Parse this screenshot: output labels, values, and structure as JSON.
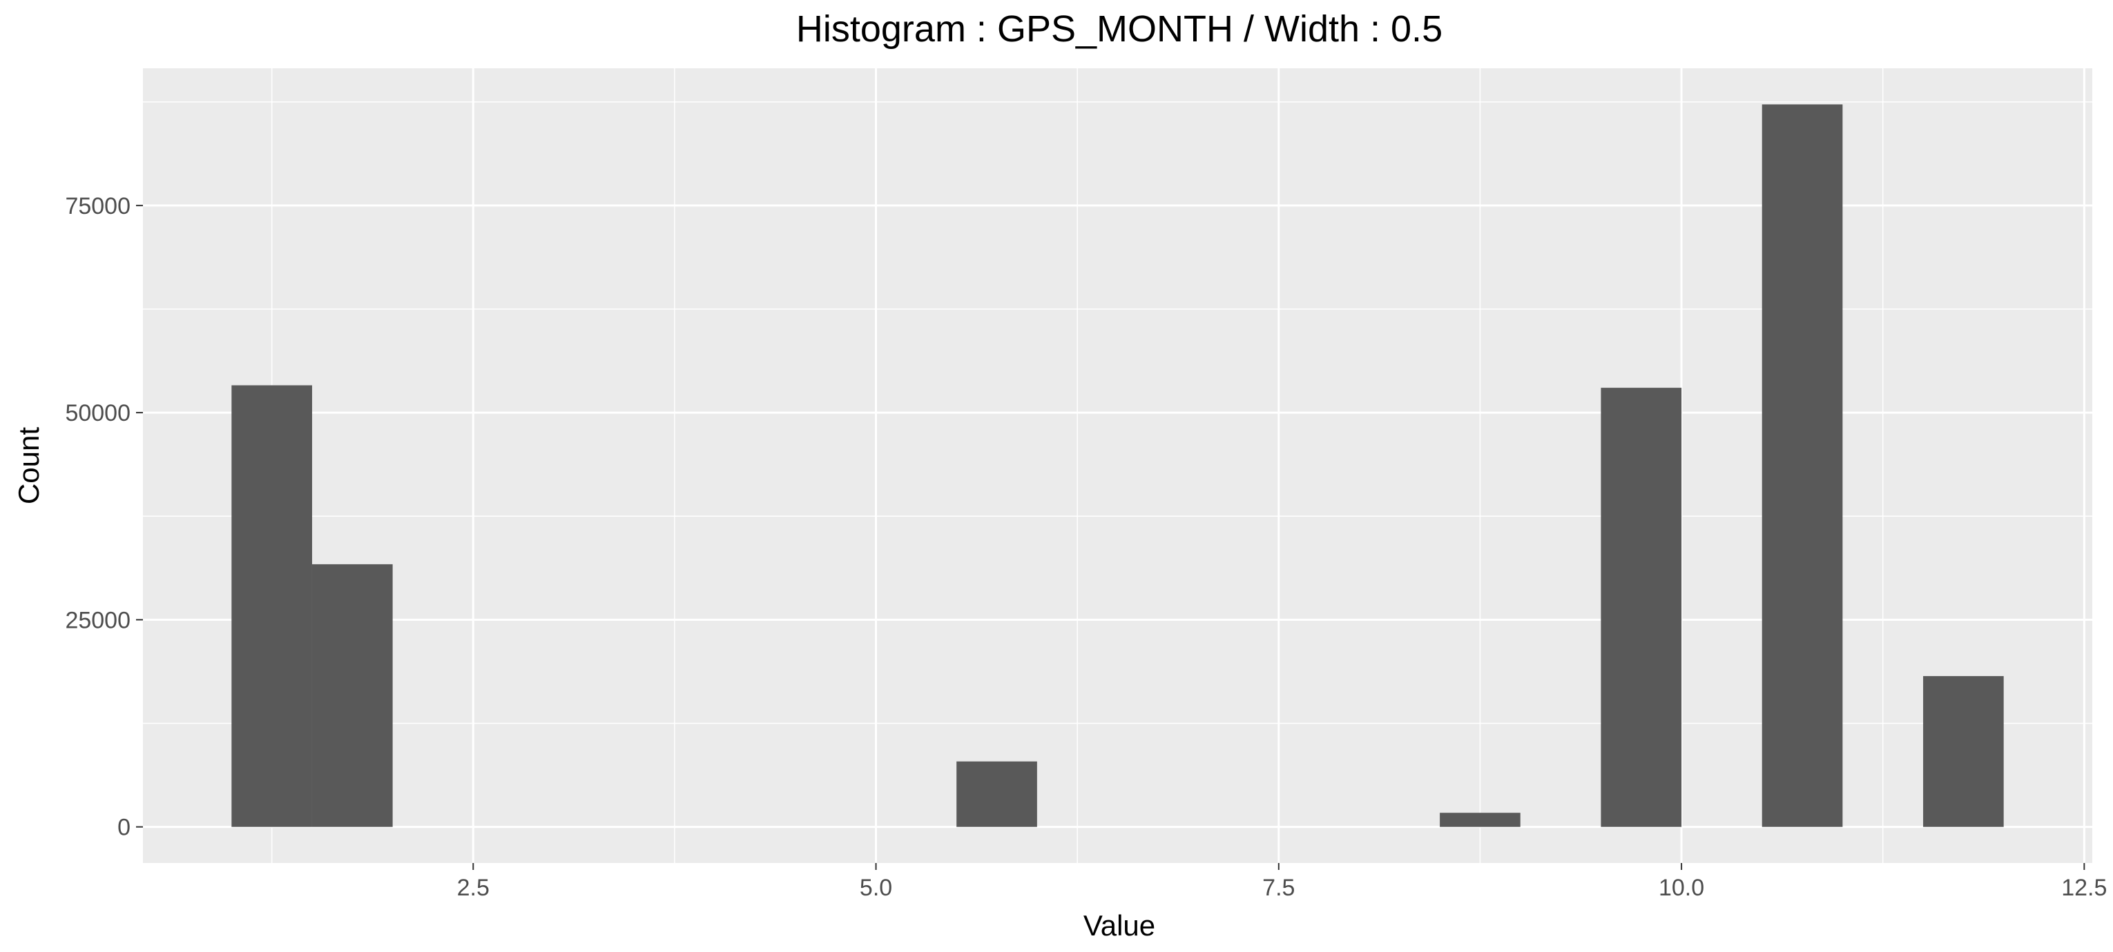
{
  "chart_data": {
    "type": "bar",
    "title": "Histogram : GPS_MONTH / Width : 0.5",
    "xlabel": "Value",
    "ylabel": "Count",
    "bin_width": 0.5,
    "bins": [
      {
        "x_start": 1.0,
        "x_end": 1.5,
        "count": 53300
      },
      {
        "x_start": 1.5,
        "x_end": 2.0,
        "count": 31700
      },
      {
        "x_start": 5.5,
        "x_end": 6.0,
        "count": 7900
      },
      {
        "x_start": 8.5,
        "x_end": 9.0,
        "count": 1700
      },
      {
        "x_start": 9.5,
        "x_end": 10.0,
        "count": 53000
      },
      {
        "x_start": 10.5,
        "x_end": 11.0,
        "count": 87200
      },
      {
        "x_start": 11.5,
        "x_end": 12.0,
        "count": 18200
      }
    ],
    "xlim": [
      0.45,
      12.55
    ],
    "ylim": [
      -4360,
      91560
    ],
    "x_ticks": [
      2.5,
      5.0,
      7.5,
      10.0,
      12.5
    ],
    "x_tick_labels": [
      "2.5",
      "5.0",
      "7.5",
      "10.0",
      "12.5"
    ],
    "y_ticks": [
      0,
      25000,
      50000,
      75000
    ],
    "y_tick_labels": [
      "0",
      "25000",
      "50000",
      "75000"
    ],
    "x_minor_ticks": [
      1.25,
      3.75,
      6.25,
      8.75,
      11.25
    ],
    "y_minor_ticks": [
      12500,
      37500,
      62500,
      87500
    ],
    "grid": true,
    "legend": "none",
    "colors": {
      "bar_fill": "#595959",
      "panel_background": "#ebebeb",
      "grid_line": "#ffffff",
      "tick_text": "#4d4d4d",
      "tick_mark": "#333333"
    }
  }
}
